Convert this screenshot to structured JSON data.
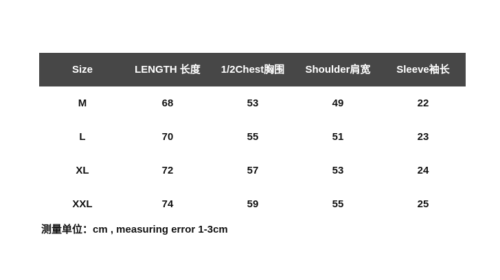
{
  "table": {
    "header": [
      "Size",
      "LENGTH 长度",
      "1/2Chest胸围",
      "Shoulder肩宽",
      "Sleeve袖长"
    ],
    "rows": [
      [
        "M",
        68,
        53,
        49,
        22
      ],
      [
        "L",
        70,
        55,
        51,
        23
      ],
      [
        "XL",
        72,
        57,
        53,
        24
      ],
      [
        "XXL",
        74,
        59,
        55,
        25
      ]
    ]
  },
  "footer": "测量单位：cm , measuring error 1-3cm"
}
